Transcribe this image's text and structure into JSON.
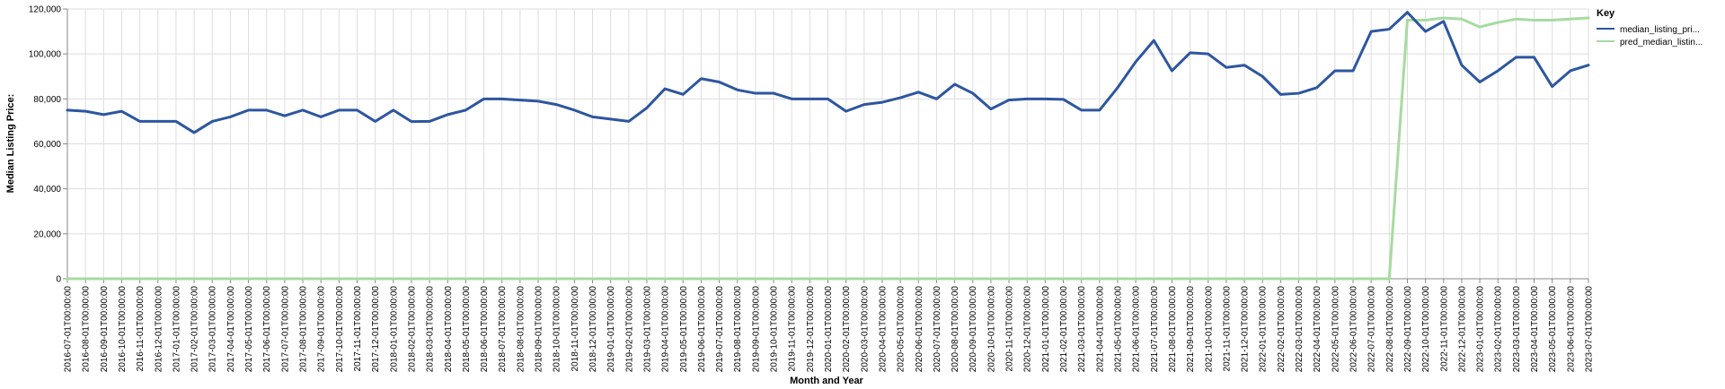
{
  "chart_data": {
    "type": "line",
    "xlabel": "Month and Year",
    "ylabel": "Median Listing Price:",
    "ylim": [
      0,
      120000
    ],
    "yticks": [
      "0",
      "20,000",
      "40,000",
      "60,000",
      "80,000",
      "100,000",
      "120,000"
    ],
    "grid": true,
    "legend": {
      "title": "Key",
      "placement": "top-right",
      "entries": [
        "median_listing_pri...",
        "pred_median_listin..."
      ]
    },
    "colors": {
      "median_listing_price": "#2d56a0",
      "pred_median_listing_price": "#a6dba0",
      "grid": "#dddddd",
      "axis": "#888888"
    },
    "x": [
      "2016-07-01T00:00:00",
      "2016-08-01T00:00:00",
      "2016-09-01T00:00:00",
      "2016-10-01T00:00:00",
      "2016-11-01T00:00:00",
      "2016-12-01T00:00:00",
      "2017-01-01T00:00:00",
      "2017-02-01T00:00:00",
      "2017-03-01T00:00:00",
      "2017-04-01T00:00:00",
      "2017-05-01T00:00:00",
      "2017-06-01T00:00:00",
      "2017-07-01T00:00:00",
      "2017-08-01T00:00:00",
      "2017-09-01T00:00:00",
      "2017-10-01T00:00:00",
      "2017-11-01T00:00:00",
      "2017-12-01T00:00:00",
      "2018-01-01T00:00:00",
      "2018-02-01T00:00:00",
      "2018-03-01T00:00:00",
      "2018-04-01T00:00:00",
      "2018-05-01T00:00:00",
      "2018-06-01T00:00:00",
      "2018-07-01T00:00:00",
      "2018-08-01T00:00:00",
      "2018-09-01T00:00:00",
      "2018-10-01T00:00:00",
      "2018-11-01T00:00:00",
      "2018-12-01T00:00:00",
      "2019-01-01T00:00:00",
      "2019-02-01T00:00:00",
      "2019-03-01T00:00:00",
      "2019-04-01T00:00:00",
      "2019-05-01T00:00:00",
      "2019-06-01T00:00:00",
      "2019-07-01T00:00:00",
      "2019-08-01T00:00:00",
      "2019-09-01T00:00:00",
      "2019-10-01T00:00:00",
      "2019-11-01T00:00:00",
      "2019-12-01T00:00:00",
      "2020-01-01T00:00:00",
      "2020-02-01T00:00:00",
      "2020-03-01T00:00:00",
      "2020-04-01T00:00:00",
      "2020-05-01T00:00:00",
      "2020-06-01T00:00:00",
      "2020-07-01T00:00:00",
      "2020-08-01T00:00:00",
      "2020-09-01T00:00:00",
      "2020-10-01T00:00:00",
      "2020-11-01T00:00:00",
      "2020-12-01T00:00:00",
      "2021-01-01T00:00:00",
      "2021-02-01T00:00:00",
      "2021-03-01T00:00:00",
      "2021-04-01T00:00:00",
      "2021-05-01T00:00:00",
      "2021-06-01T00:00:00",
      "2021-07-01T00:00:00",
      "2021-08-01T00:00:00",
      "2021-09-01T00:00:00",
      "2021-10-01T00:00:00",
      "2021-11-01T00:00:00",
      "2021-12-01T00:00:00",
      "2022-01-01T00:00:00",
      "2022-02-01T00:00:00",
      "2022-03-01T00:00:00",
      "2022-04-01T00:00:00",
      "2022-05-01T00:00:00",
      "2022-06-01T00:00:00",
      "2022-07-01T00:00:00",
      "2022-08-01T00:00:00",
      "2022-09-01T00:00:00",
      "2022-10-01T00:00:00",
      "2022-11-01T00:00:00",
      "2022-12-01T00:00:00",
      "2023-01-01T00:00:00",
      "2023-02-01T00:00:00",
      "2023-03-01T00:00:00",
      "2023-04-01T00:00:00",
      "2023-05-01T00:00:00",
      "2023-06-01T00:00:00",
      "2023-07-01T00:00:00"
    ],
    "series": [
      {
        "name": "median_listing_pri...",
        "values": [
          75000,
          74500,
          73000,
          74500,
          70000,
          70000,
          70000,
          65000,
          70000,
          72000,
          75000,
          75000,
          72500,
          75000,
          72000,
          75000,
          75000,
          70000,
          75000,
          69900,
          70000,
          73000,
          75000,
          80000,
          80000,
          79500,
          79000,
          77500,
          75000,
          72000,
          71000,
          70000,
          76000,
          84500,
          82000,
          89000,
          87500,
          84000,
          82500,
          82500,
          80000,
          80000,
          80000,
          74500,
          77500,
          78500,
          80500,
          83000,
          80000,
          86500,
          82500,
          75500,
          79500,
          80000,
          80000,
          79800,
          75000,
          75000,
          85000,
          96500,
          106000,
          92500,
          100500,
          100000,
          94000,
          95000,
          90000,
          82000,
          82500,
          85000,
          92500,
          92500,
          110000,
          111000,
          118500,
          110000,
          114500,
          95000,
          87500,
          92500,
          98500,
          98500,
          85500,
          92500,
          95000
        ]
      },
      {
        "name": "pred_median_listin...",
        "values": [
          0,
          0,
          0,
          0,
          0,
          0,
          0,
          0,
          0,
          0,
          0,
          0,
          0,
          0,
          0,
          0,
          0,
          0,
          0,
          0,
          0,
          0,
          0,
          0,
          0,
          0,
          0,
          0,
          0,
          0,
          0,
          0,
          0,
          0,
          0,
          0,
          0,
          0,
          0,
          0,
          0,
          0,
          0,
          0,
          0,
          0,
          0,
          0,
          0,
          0,
          0,
          0,
          0,
          0,
          0,
          0,
          0,
          0,
          0,
          0,
          0,
          0,
          0,
          0,
          0,
          0,
          0,
          0,
          0,
          0,
          0,
          0,
          0,
          0,
          115000,
          115000,
          116000,
          115500,
          112000,
          114000,
          115500,
          115000,
          115000,
          115500,
          116000
        ]
      }
    ]
  }
}
